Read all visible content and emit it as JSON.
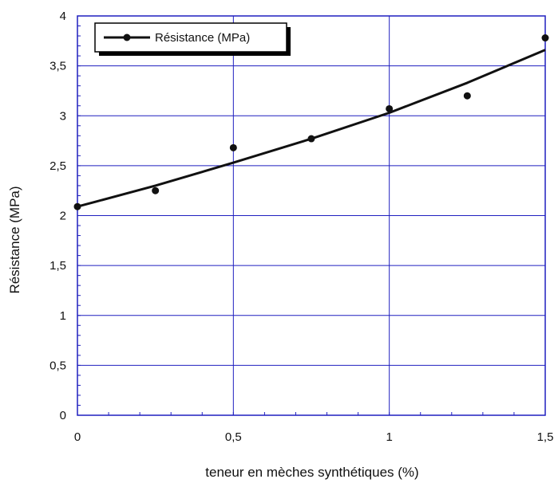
{
  "chart_data": {
    "type": "scatter",
    "xlabel": "teneur en mèches synthétiques (%)",
    "ylabel": "Résistance (MPa)",
    "xlim": [
      0,
      1.5
    ],
    "ylim": [
      0,
      4
    ],
    "x_ticks": [
      "0",
      "0,5",
      "1",
      "1,5"
    ],
    "y_ticks": [
      "0",
      "0,5",
      "1",
      "1,5",
      "2",
      "2,5",
      "3",
      "3,5",
      "4"
    ],
    "grid": true,
    "legend_position": "top-left",
    "series": [
      {
        "name": "Résistance (MPa)",
        "x": [
          0,
          0.25,
          0.5,
          0.75,
          1.0,
          1.25,
          1.5
        ],
        "y": [
          2.09,
          2.25,
          2.68,
          2.77,
          3.07,
          3.2,
          3.78
        ]
      }
    ],
    "trend_line": {
      "x": [
        0,
        0.25,
        0.5,
        0.75,
        1.0,
        1.25,
        1.5
      ],
      "y": [
        2.09,
        2.3,
        2.53,
        2.77,
        3.03,
        3.33,
        3.66
      ]
    },
    "colors": {
      "grid": "#1f1fbf",
      "frame": "#1f1fbf",
      "series": "#111111"
    }
  }
}
